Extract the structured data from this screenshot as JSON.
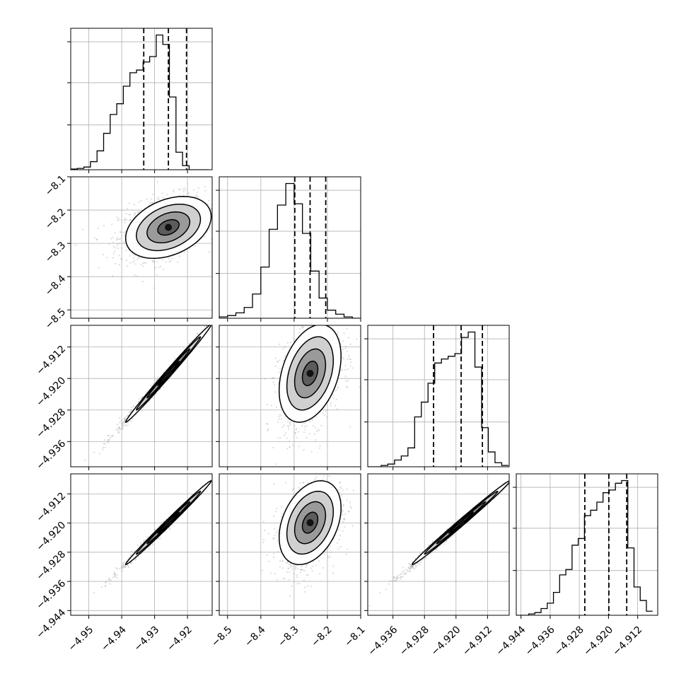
{
  "chart_data": {
    "type": "corner",
    "n_params": 4,
    "labels": [
      "",
      "",
      "",
      ""
    ],
    "ranges": [
      [
        -4.9555,
        -4.9125
      ],
      [
        -8.525,
        -8.1
      ],
      [
        -4.9424,
        -4.9065
      ],
      [
        -4.9453,
        -4.9065
      ]
    ],
    "ticks": [
      [
        -4.95,
        -4.94,
        -4.93,
        -4.92
      ],
      [
        -8.5,
        -8.4,
        -8.3,
        -8.2,
        -8.1
      ],
      [
        -4.936,
        -4.928,
        -4.92,
        -4.912
      ],
      [
        -4.944,
        -4.936,
        -4.928,
        -4.92,
        -4.912
      ]
    ],
    "tick_labels": [
      [
        "−4.95",
        "−4.94",
        "−4.93",
        "−4.92"
      ],
      [
        "−8.5",
        "−8.4",
        "−8.3",
        "−8.2",
        "−8.1"
      ],
      [
        "−4.936",
        "−4.928",
        "−4.920",
        "−4.912"
      ],
      [
        "−4.944",
        "−4.936",
        "−4.928",
        "−4.920",
        "−4.912"
      ]
    ],
    "histograms": [
      {
        "edges": [
          -4.9555,
          -4.9535,
          -4.9515,
          -4.9495,
          -4.9475,
          -4.9455,
          -4.9435,
          -4.9415,
          -4.9395,
          -4.9375,
          -4.9355,
          -4.9335,
          -4.9315,
          -4.9295,
          -4.9275,
          -4.9255,
          -4.9235,
          -4.9215,
          -4.9195,
          -4.9175,
          -4.9155,
          -4.9135
        ],
        "counts": [
          0.005,
          0.01,
          0.02,
          0.06,
          0.14,
          0.27,
          0.41,
          0.49,
          0.62,
          0.72,
          0.74,
          0.8,
          0.84,
          1.0,
          0.93,
          0.54,
          0.13,
          0.03,
          0,
          0,
          0
        ],
        "quantiles": [
          -4.9333,
          -4.9258,
          -4.9203
        ]
      },
      {
        "edges": [
          -8.525,
          -8.5,
          -8.475,
          -8.45,
          -8.425,
          -8.4,
          -8.375,
          -8.35,
          -8.325,
          -8.3,
          -8.275,
          -8.25,
          -8.225,
          -8.2,
          -8.175,
          -8.15,
          -8.125,
          -8.1
        ],
        "counts": [
          0.01,
          0.02,
          0.04,
          0.08,
          0.18,
          0.38,
          0.66,
          0.84,
          1.0,
          0.85,
          0.63,
          0.35,
          0.15,
          0.06,
          0.03,
          0.01,
          0
        ],
        "quantiles": [
          -8.298,
          -8.252,
          -8.205
        ]
      },
      {
        "edges": [
          -4.9424,
          -4.9407,
          -4.939,
          -4.9373,
          -4.9356,
          -4.9339,
          -4.9322,
          -4.9305,
          -4.9288,
          -4.9271,
          -4.9254,
          -4.9237,
          -4.922,
          -4.9203,
          -4.9186,
          -4.9169,
          -4.9152,
          -4.9135,
          -4.9118,
          -4.9101,
          -4.9084,
          -4.9067
        ],
        "counts": [
          0,
          0,
          0.01,
          0.02,
          0.05,
          0.08,
          0.14,
          0.37,
          0.48,
          0.62,
          0.77,
          0.8,
          0.82,
          0.84,
          0.96,
          1.0,
          0.74,
          0.29,
          0.11,
          0.03,
          0.01
        ],
        "quantiles": [
          -4.9257,
          -4.9187,
          -4.9133
        ]
      },
      {
        "edges": [
          -4.9453,
          -4.9436,
          -4.9419,
          -4.9402,
          -4.9385,
          -4.9368,
          -4.9351,
          -4.9334,
          -4.9317,
          -4.93,
          -4.9283,
          -4.9266,
          -4.9249,
          -4.9232,
          -4.9215,
          -4.9198,
          -4.9181,
          -4.9164,
          -4.9147,
          -4.913,
          -4.9113,
          -4.9096,
          -4.9079
        ],
        "counts": [
          0,
          0,
          0.01,
          0.02,
          0.05,
          0.09,
          0.17,
          0.3,
          0.34,
          0.52,
          0.57,
          0.74,
          0.78,
          0.84,
          0.91,
          0.93,
          0.98,
          1.0,
          0.5,
          0.21,
          0.11,
          0.03
        ],
        "quantiles": [
          -4.9265,
          -4.9199,
          -4.915
        ]
      }
    ],
    "correlations": {
      "1-0": 0.35,
      "2-0": 0.995,
      "2-1": 0.35,
      "3-0": 0.995,
      "3-1": 0.35,
      "3-2": 0.995
    },
    "grid": true,
    "levels": 4
  }
}
